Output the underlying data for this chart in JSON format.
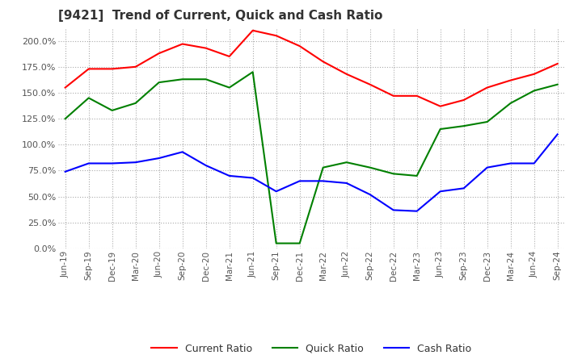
{
  "title": "[9421]  Trend of Current, Quick and Cash Ratio",
  "title_fontsize": 11,
  "x_labels": [
    "Jun-19",
    "Sep-19",
    "Dec-19",
    "Mar-20",
    "Jun-20",
    "Sep-20",
    "Dec-20",
    "Mar-21",
    "Jun-21",
    "Sep-21",
    "Dec-21",
    "Mar-22",
    "Jun-22",
    "Sep-22",
    "Dec-22",
    "Mar-23",
    "Jun-23",
    "Sep-23",
    "Dec-23",
    "Mar-24",
    "Jun-24",
    "Sep-24"
  ],
  "current_ratio": [
    155,
    173,
    173,
    175,
    188,
    197,
    193,
    185,
    210,
    205,
    195,
    180,
    168,
    158,
    147,
    147,
    137,
    143,
    155,
    162,
    168,
    178
  ],
  "quick_ratio": [
    125,
    145,
    133,
    140,
    160,
    163,
    163,
    155,
    170,
    5,
    5,
    78,
    83,
    78,
    72,
    70,
    115,
    118,
    122,
    140,
    152,
    158
  ],
  "cash_ratio": [
    74,
    82,
    82,
    83,
    87,
    93,
    80,
    70,
    68,
    55,
    65,
    65,
    63,
    52,
    37,
    36,
    55,
    58,
    78,
    82,
    82,
    110
  ],
  "current_color": "#ff0000",
  "quick_color": "#008000",
  "cash_color": "#0000ff",
  "ylim": [
    0,
    212
  ],
  "yticks": [
    0,
    25,
    50,
    75,
    100,
    125,
    150,
    175,
    200
  ],
  "background_color": "#ffffff",
  "grid_color": "#aaaaaa",
  "legend_labels": [
    "Current Ratio",
    "Quick Ratio",
    "Cash Ratio"
  ]
}
